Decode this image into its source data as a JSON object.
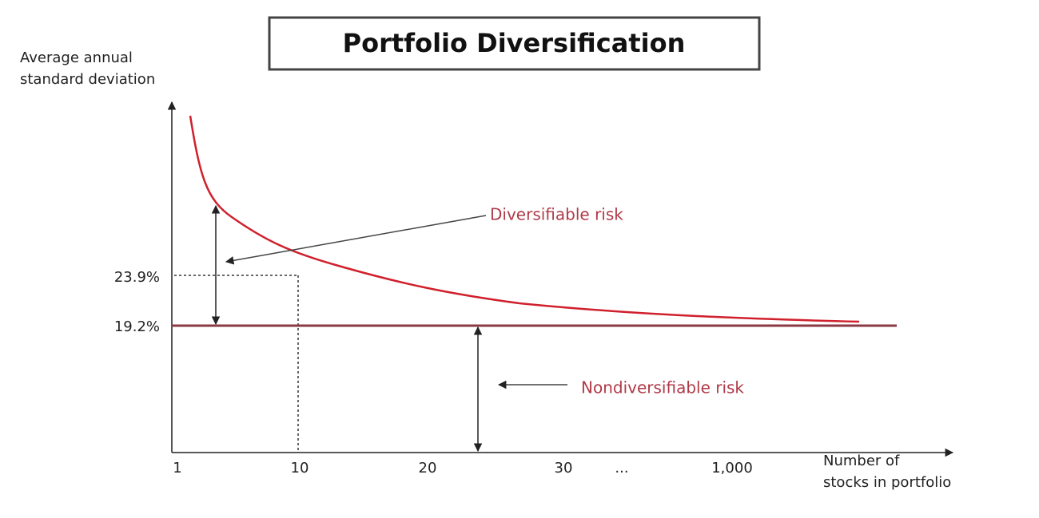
{
  "title": "Portfolio Diversification",
  "y_axis_label": [
    "Average annual",
    "standard deviation"
  ],
  "x_axis_label": [
    "Number of",
    "stocks in portfolio"
  ],
  "y_labels": [
    "23.9%",
    "19.2%"
  ],
  "x_labels": [
    "1",
    "10",
    "20",
    "30",
    "...",
    "1,000"
  ],
  "annotations": {
    "diversifiable": "Diversifiable risk",
    "nondiversifiable": "Nondiversifiable risk"
  }
}
